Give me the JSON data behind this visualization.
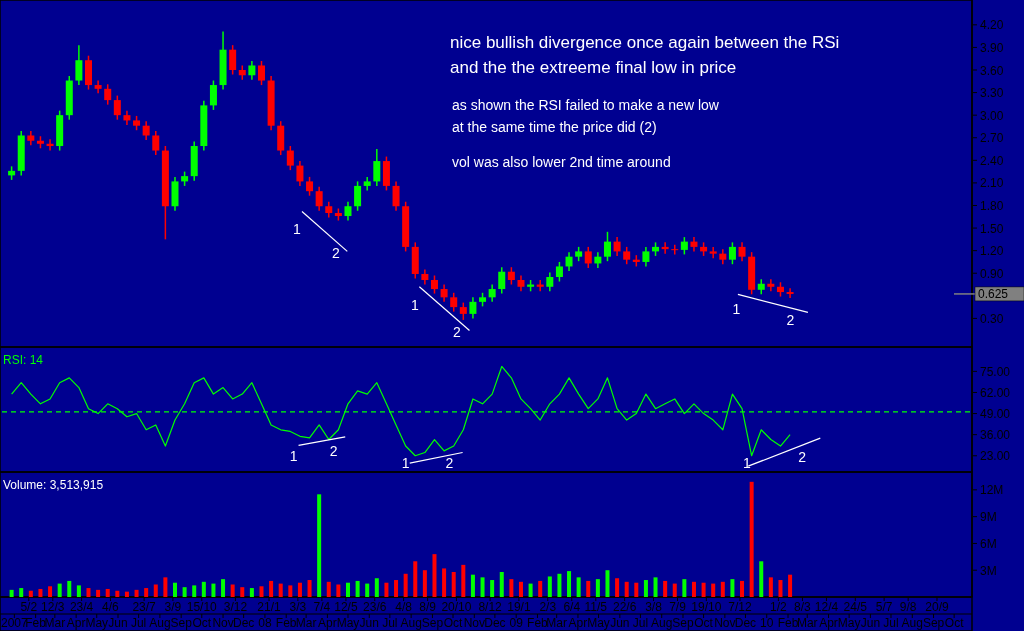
{
  "chart_data": [
    {
      "type": "candlestick",
      "xlim": [
        "2006-12-28",
        "2010-11-10"
      ],
      "ylim": [
        -0.08,
        4.53
      ],
      "tick_labels": "y",
      "yticks": [
        {
          "value": 4.2,
          "label": "4.20"
        },
        {
          "value": 3.9,
          "label": "3.90"
        },
        {
          "value": 3.6,
          "label": "3.60"
        },
        {
          "value": 3.3,
          "label": "3.30"
        },
        {
          "value": 3.0,
          "label": "3.00"
        },
        {
          "value": 2.7,
          "label": "2.70"
        },
        {
          "value": 2.4,
          "label": "2.40"
        },
        {
          "value": 2.1,
          "label": "2.10"
        },
        {
          "value": 1.8,
          "label": "1.80"
        },
        {
          "value": 1.5,
          "label": "1.50"
        },
        {
          "value": 1.2,
          "label": "1.20"
        },
        {
          "value": 0.9,
          "label": "0.90"
        },
        {
          "value": 0.3,
          "label": "0.30"
        }
      ],
      "x": [
        "2007-01-11",
        "2007-01-25",
        "2007-02-08",
        "2007-02-22",
        "2007-03-08",
        "2007-03-22",
        "2007-04-05",
        "2007-04-19",
        "2007-05-03",
        "2007-05-17",
        "2007-05-31",
        "2007-06-14",
        "2007-06-28",
        "2007-07-12",
        "2007-07-26",
        "2007-08-09",
        "2007-08-23",
        "2007-09-06",
        "2007-09-20",
        "2007-10-04",
        "2007-10-18",
        "2007-11-01",
        "2007-11-15",
        "2007-11-29",
        "2007-12-13",
        "2007-12-27",
        "2008-01-10",
        "2008-01-24",
        "2008-02-07",
        "2008-02-21",
        "2008-03-06",
        "2008-03-20",
        "2008-04-03",
        "2008-04-17",
        "2008-05-01",
        "2008-05-15",
        "2008-05-29",
        "2008-06-12",
        "2008-06-26",
        "2008-07-10",
        "2008-07-24",
        "2008-08-07",
        "2008-08-21",
        "2008-09-04",
        "2008-09-18",
        "2008-10-02",
        "2008-10-16",
        "2008-10-30",
        "2008-11-13",
        "2008-11-27",
        "2008-12-11",
        "2008-12-25",
        "2009-01-08",
        "2009-01-22",
        "2009-02-05",
        "2009-02-19",
        "2009-03-05",
        "2009-03-19",
        "2009-04-02",
        "2009-04-16",
        "2009-04-30",
        "2009-05-14",
        "2009-05-28",
        "2009-06-11",
        "2009-06-25",
        "2009-07-09",
        "2009-07-23",
        "2009-08-06",
        "2009-08-20",
        "2009-09-03",
        "2009-09-17",
        "2009-10-01",
        "2009-10-15",
        "2009-10-29",
        "2009-11-12",
        "2009-11-26",
        "2009-12-10",
        "2009-12-24",
        "2010-01-07",
        "2010-01-21",
        "2010-02-04",
        "2010-02-18"
      ],
      "ohlc": [
        [
          2.2,
          2.32,
          2.14,
          2.26
        ],
        [
          2.26,
          2.79,
          2.2,
          2.73
        ],
        [
          2.73,
          2.79,
          2.6,
          2.66
        ],
        [
          2.66,
          2.72,
          2.56,
          2.62
        ],
        [
          2.62,
          2.68,
          2.53,
          2.59
        ],
        [
          2.59,
          3.06,
          2.53,
          3.0
        ],
        [
          3.0,
          3.52,
          2.94,
          3.46
        ],
        [
          3.46,
          3.93,
          3.4,
          3.73
        ],
        [
          3.73,
          3.79,
          3.34,
          3.4
        ],
        [
          3.4,
          3.46,
          3.29,
          3.35
        ],
        [
          3.35,
          3.41,
          3.14,
          3.2
        ],
        [
          3.2,
          3.26,
          2.94,
          3.0
        ],
        [
          3.0,
          3.06,
          2.87,
          2.93
        ],
        [
          2.93,
          2.99,
          2.8,
          2.86
        ],
        [
          2.86,
          2.92,
          2.67,
          2.73
        ],
        [
          2.73,
          2.79,
          2.47,
          2.53
        ],
        [
          2.53,
          2.59,
          1.35,
          1.79
        ],
        [
          1.79,
          2.18,
          1.73,
          2.12
        ],
        [
          2.12,
          2.25,
          2.06,
          2.19
        ],
        [
          2.19,
          2.65,
          2.13,
          2.59
        ],
        [
          2.59,
          3.19,
          2.53,
          3.13
        ],
        [
          3.13,
          3.46,
          3.07,
          3.4
        ],
        [
          3.4,
          4.11,
          3.34,
          3.87
        ],
        [
          3.87,
          3.93,
          3.54,
          3.6
        ],
        [
          3.6,
          3.66,
          3.47,
          3.53
        ],
        [
          3.53,
          3.72,
          3.47,
          3.66
        ],
        [
          3.66,
          3.72,
          3.4,
          3.46
        ],
        [
          3.46,
          3.52,
          2.8,
          2.86
        ],
        [
          2.86,
          2.92,
          2.47,
          2.53
        ],
        [
          2.53,
          2.59,
          2.27,
          2.33
        ],
        [
          2.33,
          2.39,
          2.06,
          2.12
        ],
        [
          2.12,
          2.18,
          1.93,
          1.99
        ],
        [
          1.99,
          2.05,
          1.73,
          1.79
        ],
        [
          1.79,
          1.85,
          1.64,
          1.7
        ],
        [
          1.7,
          1.76,
          1.6,
          1.66
        ],
        [
          1.66,
          1.85,
          1.6,
          1.79
        ],
        [
          1.79,
          2.12,
          1.73,
          2.06
        ],
        [
          2.06,
          2.18,
          2.0,
          2.12
        ],
        [
          2.12,
          2.55,
          2.06,
          2.39
        ],
        [
          2.39,
          2.45,
          2.0,
          2.06
        ],
        [
          2.06,
          2.12,
          1.73,
          1.79
        ],
        [
          1.79,
          1.85,
          1.19,
          1.25
        ],
        [
          1.25,
          1.31,
          0.83,
          0.89
        ],
        [
          0.89,
          0.95,
          0.75,
          0.81
        ],
        [
          0.81,
          0.87,
          0.63,
          0.69
        ],
        [
          0.69,
          0.75,
          0.52,
          0.58
        ],
        [
          0.58,
          0.64,
          0.39,
          0.45
        ],
        [
          0.45,
          0.51,
          0.28,
          0.36
        ],
        [
          0.36,
          0.58,
          0.3,
          0.52
        ],
        [
          0.52,
          0.64,
          0.46,
          0.58
        ],
        [
          0.58,
          0.75,
          0.52,
          0.69
        ],
        [
          0.69,
          0.98,
          0.63,
          0.92
        ],
        [
          0.92,
          0.98,
          0.75,
          0.81
        ],
        [
          0.81,
          0.87,
          0.66,
          0.72
        ],
        [
          0.72,
          0.81,
          0.66,
          0.75
        ],
        [
          0.75,
          0.81,
          0.66,
          0.72
        ],
        [
          0.72,
          0.91,
          0.66,
          0.85
        ],
        [
          0.85,
          1.05,
          0.79,
          0.99
        ],
        [
          0.99,
          1.18,
          0.93,
          1.12
        ],
        [
          1.12,
          1.25,
          1.06,
          1.19
        ],
        [
          1.19,
          1.25,
          0.97,
          1.03
        ],
        [
          1.03,
          1.18,
          0.97,
          1.12
        ],
        [
          1.12,
          1.45,
          1.06,
          1.32
        ],
        [
          1.32,
          1.38,
          1.13,
          1.19
        ],
        [
          1.19,
          1.25,
          1.02,
          1.08
        ],
        [
          1.08,
          1.14,
          0.99,
          1.05
        ],
        [
          1.05,
          1.25,
          0.99,
          1.19
        ],
        [
          1.19,
          1.31,
          1.13,
          1.25
        ],
        [
          1.25,
          1.31,
          1.16,
          1.22
        ],
        [
          1.22,
          1.28,
          1.15,
          1.21
        ],
        [
          1.21,
          1.38,
          1.15,
          1.32
        ],
        [
          1.32,
          1.38,
          1.19,
          1.25
        ],
        [
          1.25,
          1.31,
          1.13,
          1.19
        ],
        [
          1.19,
          1.25,
          1.1,
          1.16
        ],
        [
          1.16,
          1.22,
          1.02,
          1.08
        ],
        [
          1.08,
          1.31,
          1.02,
          1.25
        ],
        [
          1.25,
          1.31,
          1.06,
          1.12
        ],
        [
          1.12,
          1.18,
          0.62,
          0.68
        ],
        [
          0.68,
          0.82,
          0.62,
          0.76
        ],
        [
          0.76,
          0.82,
          0.66,
          0.72
        ],
        [
          0.72,
          0.78,
          0.59,
          0.65
        ],
        [
          0.65,
          0.7,
          0.57,
          0.625
        ]
      ],
      "colors": [
        "#00ff00",
        "#00ff00",
        "#ff0000",
        "#ff0000",
        "#ff0000",
        "#00ff00",
        "#00ff00",
        "#00ff00",
        "#ff0000",
        "#ff0000",
        "#ff0000",
        "#ff0000",
        "#ff0000",
        "#ff0000",
        "#ff0000",
        "#ff0000",
        "#ff0000",
        "#00ff00",
        "#00ff00",
        "#00ff00",
        "#00ff00",
        "#00ff00",
        "#00ff00",
        "#ff0000",
        "#ff0000",
        "#00ff00",
        "#ff0000",
        "#ff0000",
        "#ff0000",
        "#ff0000",
        "#ff0000",
        "#ff0000",
        "#ff0000",
        "#ff0000",
        "#ff0000",
        "#00ff00",
        "#00ff00",
        "#00ff00",
        "#00ff00",
        "#ff0000",
        "#ff0000",
        "#ff0000",
        "#ff0000",
        "#ff0000",
        "#ff0000",
        "#ff0000",
        "#ff0000",
        "#ff0000",
        "#00ff00",
        "#00ff00",
        "#00ff00",
        "#00ff00",
        "#ff0000",
        "#ff0000",
        "#00ff00",
        "#ff0000",
        "#00ff00",
        "#00ff00",
        "#00ff00",
        "#00ff00",
        "#ff0000",
        "#00ff00",
        "#00ff00",
        "#ff0000",
        "#ff0000",
        "#ff0000",
        "#00ff00",
        "#00ff00",
        "#ff0000",
        "#ff0000",
        "#00ff00",
        "#ff0000",
        "#ff0000",
        "#ff0000",
        "#ff0000",
        "#00ff00",
        "#ff0000",
        "#ff0000",
        "#00ff00",
        "#ff0000",
        "#ff0000",
        "#ff0000"
      ],
      "series": [
        {
          "type": "line",
          "color": "#ffffff",
          "x": [
            "2008-03-09",
            "2008-05-14"
          ],
          "values": [
            1.72,
            1.19
          ]
        },
        {
          "type": "line",
          "color": "#ffffff",
          "x": [
            "2008-08-27",
            "2008-11-08"
          ],
          "values": [
            0.72,
            0.14
          ]
        },
        {
          "type": "line",
          "color": "#ffffff",
          "x": [
            "2009-12-04",
            "2010-03-16"
          ],
          "values": [
            0.62,
            0.38
          ]
        }
      ],
      "ref_lines": [
        {
          "axis": "y",
          "value": 0.625,
          "label": "0.625",
          "color": "#808080"
        }
      ],
      "annotations": [
        "nice bullish divergence once again between the RSi",
        "and the the extreeme final low in price",
        "as shown the RSI failed to make a new low",
        "at the same time the price did  (2)",
        "vol was also lower 2nd time around",
        "1",
        "2",
        "1",
        "2",
        "1",
        "2"
      ]
    },
    {
      "type": "line",
      "title": "RSI: 14",
      "xlim": [
        "2006-12-28",
        "2010-11-10"
      ],
      "ylim": [
        13,
        90
      ],
      "tick_labels": "y",
      "yticks": [
        {
          "value": 23,
          "label": "23.00"
        },
        {
          "value": 36,
          "label": "36.00"
        },
        {
          "value": 49,
          "label": "49.00"
        },
        {
          "value": 62,
          "label": "62.00"
        },
        {
          "value": 75,
          "label": "75.00"
        }
      ],
      "x": [
        "2007-01-11",
        "2007-01-25",
        "2007-02-08",
        "2007-02-22",
        "2007-03-08",
        "2007-03-22",
        "2007-04-05",
        "2007-04-19",
        "2007-05-03",
        "2007-05-17",
        "2007-05-31",
        "2007-06-14",
        "2007-06-28",
        "2007-07-12",
        "2007-07-26",
        "2007-08-09",
        "2007-08-23",
        "2007-09-06",
        "2007-09-20",
        "2007-10-04",
        "2007-10-18",
        "2007-11-01",
        "2007-11-15",
        "2007-11-29",
        "2007-12-13",
        "2007-12-27",
        "2008-01-10",
        "2008-01-24",
        "2008-02-07",
        "2008-02-21",
        "2008-03-06",
        "2008-03-20",
        "2008-04-03",
        "2008-04-17",
        "2008-05-01",
        "2008-05-15",
        "2008-05-29",
        "2008-06-12",
        "2008-06-26",
        "2008-07-10",
        "2008-07-24",
        "2008-08-07",
        "2008-08-21",
        "2008-09-04",
        "2008-09-18",
        "2008-10-02",
        "2008-10-16",
        "2008-10-30",
        "2008-11-13",
        "2008-11-27",
        "2008-12-11",
        "2008-12-25",
        "2009-01-08",
        "2009-01-22",
        "2009-02-05",
        "2009-02-19",
        "2009-03-05",
        "2009-03-19",
        "2009-04-02",
        "2009-04-16",
        "2009-04-30",
        "2009-05-14",
        "2009-05-28",
        "2009-06-11",
        "2009-06-25",
        "2009-07-09",
        "2009-07-23",
        "2009-08-06",
        "2009-08-20",
        "2009-09-03",
        "2009-09-17",
        "2009-10-01",
        "2009-10-15",
        "2009-10-29",
        "2009-11-12",
        "2009-11-26",
        "2009-12-10",
        "2009-12-24",
        "2010-01-07",
        "2010-01-21",
        "2010-02-04",
        "2010-02-18"
      ],
      "series": [
        {
          "color": "#00ff00",
          "values": [
            61,
            68,
            61,
            55,
            58,
            68,
            71,
            65,
            52,
            49,
            55,
            52,
            47,
            49,
            39,
            42,
            29,
            45,
            55,
            68,
            71,
            61,
            65,
            58,
            61,
            68,
            55,
            42,
            39,
            38,
            35,
            34,
            42,
            33,
            39,
            55,
            63,
            61,
            68,
            55,
            42,
            29,
            23,
            25,
            33,
            26,
            29,
            39,
            58,
            55,
            61,
            78,
            71,
            58,
            52,
            45,
            55,
            61,
            71,
            61,
            52,
            58,
            71,
            52,
            45,
            49,
            61,
            52,
            55,
            58,
            49,
            55,
            49,
            45,
            39,
            61,
            52,
            23,
            39,
            33,
            29,
            36
          ]
        },
        {
          "type": "line",
          "color": "#ffffff",
          "x": [
            "2008-03-04",
            "2008-05-11"
          ],
          "values": [
            29.4,
            34.6
          ]
        },
        {
          "type": "line",
          "color": "#ffffff",
          "x": [
            "2008-08-13",
            "2008-10-29"
          ],
          "values": [
            18.5,
            25
          ]
        },
        {
          "type": "line",
          "color": "#ffffff",
          "x": [
            "2009-12-19",
            "2010-04-03"
          ],
          "values": [
            16.6,
            33.9
          ]
        }
      ],
      "ref_lines": [
        {
          "axis": "y",
          "value": 50,
          "color": "#00ff00",
          "line_style": "dashed"
        }
      ],
      "annotations": [
        "1",
        "2",
        "1",
        "2",
        "1",
        "2"
      ]
    },
    {
      "type": "bar",
      "title": "Volume: 3,513,915",
      "xlim": [
        "2006-12-28",
        "2010-11-10"
      ],
      "ylim": [
        0,
        14
      ],
      "yticks": [
        {
          "value": 3,
          "label": "3M"
        },
        {
          "value": 6,
          "label": "6M"
        },
        {
          "value": 9,
          "label": "9M"
        },
        {
          "value": 12,
          "label": "12M"
        }
      ],
      "xticks": [
        {
          "value": "2007-01-15",
          "label": "2007"
        },
        {
          "value": "2007-02-15",
          "label": "Feb"
        },
        {
          "value": "2007-03-15",
          "label": "Mar"
        },
        {
          "value": "2007-04-15",
          "label": "Apr"
        },
        {
          "value": "2007-05-15",
          "label": "May"
        },
        {
          "value": "2007-06-15",
          "label": "Jun"
        },
        {
          "value": "2007-07-15",
          "label": "Jul"
        },
        {
          "value": "2007-08-15",
          "label": "Aug"
        },
        {
          "value": "2007-09-15",
          "label": "Sep"
        },
        {
          "value": "2007-10-15",
          "label": "Oct"
        },
        {
          "value": "2007-11-15",
          "label": "Nov"
        },
        {
          "value": "2007-12-15",
          "label": "Dec"
        },
        {
          "value": "2008-01-15",
          "label": "08"
        },
        {
          "value": "2008-02-15",
          "label": "Feb"
        },
        {
          "value": "2008-03-15",
          "label": "Mar"
        },
        {
          "value": "2008-04-15",
          "label": "Apr"
        },
        {
          "value": "2008-05-15",
          "label": "May"
        },
        {
          "value": "2008-06-15",
          "label": "Jun"
        },
        {
          "value": "2008-07-15",
          "label": "Jul"
        },
        {
          "value": "2008-08-15",
          "label": "Aug"
        },
        {
          "value": "2008-09-15",
          "label": "Sep"
        },
        {
          "value": "2008-10-15",
          "label": "Oct"
        },
        {
          "value": "2008-11-15",
          "label": "Nov"
        },
        {
          "value": "2008-12-15",
          "label": "Dec"
        },
        {
          "value": "2009-01-15",
          "label": "09"
        },
        {
          "value": "2009-02-15",
          "label": "Feb"
        },
        {
          "value": "2009-03-15",
          "label": "Mar"
        },
        {
          "value": "2009-04-15",
          "label": "Apr"
        },
        {
          "value": "2009-05-15",
          "label": "May"
        },
        {
          "value": "2009-06-15",
          "label": "Jun"
        },
        {
          "value": "2009-07-15",
          "label": "Jul"
        },
        {
          "value": "2009-08-15",
          "label": "Aug"
        },
        {
          "value": "2009-09-15",
          "label": "Sep"
        },
        {
          "value": "2009-10-15",
          "label": "Oct"
        },
        {
          "value": "2009-11-15",
          "label": "Nov"
        },
        {
          "value": "2009-12-15",
          "label": "Dec"
        },
        {
          "value": "2010-01-15",
          "label": "10"
        },
        {
          "value": "2010-02-15",
          "label": "Feb"
        },
        {
          "value": "2010-03-15",
          "label": "Mar"
        },
        {
          "value": "2010-04-15",
          "label": "Apr"
        },
        {
          "value": "2010-05-15",
          "label": "May"
        },
        {
          "value": "2010-06-15",
          "label": "Jun"
        },
        {
          "value": "2010-07-15",
          "label": "Jul"
        },
        {
          "value": "2010-08-15",
          "label": "Aug"
        },
        {
          "value": "2010-09-15",
          "label": "Sep"
        },
        {
          "value": "2010-10-15",
          "label": "Oct"
        }
      ],
      "x2lim": [
        "2006-12-28",
        "2010-11-10"
      ],
      "x2ticks": [
        {
          "value": "2007-02-05",
          "label": "5/2"
        },
        {
          "value": "2007-03-12",
          "label": "12/3"
        },
        {
          "value": "2007-04-23",
          "label": "23/4"
        },
        {
          "value": "2007-06-04",
          "label": "4/6"
        },
        {
          "value": "2007-07-23",
          "label": "23/7"
        },
        {
          "value": "2007-09-03",
          "label": "3/9"
        },
        {
          "value": "2007-10-15",
          "label": "15/10"
        },
        {
          "value": "2007-12-03",
          "label": "3/12"
        },
        {
          "value": "2008-01-21",
          "label": "21/1"
        },
        {
          "value": "2008-03-03",
          "label": "3/3"
        },
        {
          "value": "2008-04-07",
          "label": "7/4"
        },
        {
          "value": "2008-05-12",
          "label": "12/5"
        },
        {
          "value": "2008-06-23",
          "label": "23/6"
        },
        {
          "value": "2008-08-04",
          "label": "4/8"
        },
        {
          "value": "2008-09-08",
          "label": "8/9"
        },
        {
          "value": "2008-10-20",
          "label": "20/10"
        },
        {
          "value": "2008-12-08",
          "label": "8/12"
        },
        {
          "value": "2009-01-19",
          "label": "19/1"
        },
        {
          "value": "2009-03-02",
          "label": "2/3"
        },
        {
          "value": "2009-04-06",
          "label": "6/4"
        },
        {
          "value": "2009-05-11",
          "label": "11/5"
        },
        {
          "value": "2009-06-22",
          "label": "22/6"
        },
        {
          "value": "2009-08-03",
          "label": "3/8"
        },
        {
          "value": "2009-09-07",
          "label": "7/9"
        },
        {
          "value": "2009-10-19",
          "label": "19/10"
        },
        {
          "value": "2009-12-07",
          "label": "7/12"
        },
        {
          "value": "2010-02-01",
          "label": "1/2"
        },
        {
          "value": "2010-03-08",
          "label": "8/3"
        },
        {
          "value": "2010-04-12",
          "label": "12/4"
        },
        {
          "value": "2010-05-24",
          "label": "24/5"
        },
        {
          "value": "2010-07-05",
          "label": "5/7"
        },
        {
          "value": "2010-08-09",
          "label": "9/8"
        },
        {
          "value": "2010-09-20",
          "label": "20/9"
        }
      ],
      "x": [
        "2007-01-11",
        "2007-01-25",
        "2007-02-08",
        "2007-02-22",
        "2007-03-08",
        "2007-03-22",
        "2007-04-05",
        "2007-04-19",
        "2007-05-03",
        "2007-05-17",
        "2007-05-31",
        "2007-06-14",
        "2007-06-28",
        "2007-07-12",
        "2007-07-26",
        "2007-08-09",
        "2007-08-23",
        "2007-09-06",
        "2007-09-20",
        "2007-10-04",
        "2007-10-18",
        "2007-11-01",
        "2007-11-15",
        "2007-11-29",
        "2007-12-13",
        "2007-12-27",
        "2008-01-10",
        "2008-01-24",
        "2008-02-07",
        "2008-02-21",
        "2008-03-06",
        "2008-03-20",
        "2008-04-03",
        "2008-04-17",
        "2008-05-01",
        "2008-05-15",
        "2008-05-29",
        "2008-06-12",
        "2008-06-26",
        "2008-07-10",
        "2008-07-24",
        "2008-08-07",
        "2008-08-21",
        "2008-09-04",
        "2008-09-18",
        "2008-10-02",
        "2008-10-16",
        "2008-10-30",
        "2008-11-13",
        "2008-11-27",
        "2008-12-11",
        "2008-12-25",
        "2009-01-08",
        "2009-01-22",
        "2009-02-05",
        "2009-02-19",
        "2009-03-05",
        "2009-03-19",
        "2009-04-02",
        "2009-04-16",
        "2009-04-30",
        "2009-05-14",
        "2009-05-28",
        "2009-06-11",
        "2009-06-25",
        "2009-07-09",
        "2009-07-23",
        "2009-08-06",
        "2009-08-20",
        "2009-09-03",
        "2009-09-17",
        "2009-10-01",
        "2009-10-15",
        "2009-10-29",
        "2009-11-12",
        "2009-11-26",
        "2009-12-10",
        "2009-12-24",
        "2010-01-07",
        "2010-01-21",
        "2010-02-04",
        "2010-02-18"
      ],
      "values": [
        0.8,
        1.0,
        0.7,
        0.9,
        1.2,
        1.5,
        1.8,
        1.3,
        1.0,
        0.8,
        0.9,
        0.7,
        0.6,
        0.8,
        1.0,
        1.4,
        2.2,
        1.6,
        1.1,
        1.3,
        1.7,
        1.5,
        2.0,
        1.4,
        1.1,
        1.0,
        1.2,
        1.8,
        1.5,
        1.3,
        1.6,
        1.9,
        11.5,
        1.7,
        1.4,
        1.6,
        1.8,
        1.5,
        2.1,
        1.6,
        1.9,
        2.6,
        4.0,
        3.0,
        4.8,
        3.2,
        2.8,
        3.6,
        2.5,
        2.2,
        1.9,
        2.8,
        2.0,
        1.7,
        1.5,
        1.8,
        2.3,
        2.6,
        2.9,
        2.2,
        1.8,
        2.0,
        3.0,
        2.1,
        1.7,
        1.6,
        1.9,
        2.2,
        1.8,
        1.5,
        2.0,
        1.7,
        1.6,
        1.5,
        1.7,
        2.0,
        1.8,
        12.9,
        4.0,
        2.2,
        1.9,
        2.5
      ],
      "colors": [
        "#00ff00",
        "#00ff00",
        "#ff0000",
        "#ff0000",
        "#ff0000",
        "#00ff00",
        "#00ff00",
        "#00ff00",
        "#ff0000",
        "#ff0000",
        "#ff0000",
        "#ff0000",
        "#ff0000",
        "#ff0000",
        "#ff0000",
        "#ff0000",
        "#ff0000",
        "#00ff00",
        "#00ff00",
        "#00ff00",
        "#00ff00",
        "#00ff00",
        "#00ff00",
        "#ff0000",
        "#ff0000",
        "#00ff00",
        "#ff0000",
        "#ff0000",
        "#ff0000",
        "#ff0000",
        "#ff0000",
        "#ff0000",
        "#00ff00",
        "#ff0000",
        "#ff0000",
        "#00ff00",
        "#00ff00",
        "#00ff00",
        "#00ff00",
        "#ff0000",
        "#ff0000",
        "#ff0000",
        "#ff0000",
        "#ff0000",
        "#ff0000",
        "#ff0000",
        "#ff0000",
        "#ff0000",
        "#00ff00",
        "#00ff00",
        "#00ff00",
        "#00ff00",
        "#ff0000",
        "#ff0000",
        "#00ff00",
        "#ff0000",
        "#00ff00",
        "#00ff00",
        "#00ff00",
        "#00ff00",
        "#ff0000",
        "#00ff00",
        "#00ff00",
        "#ff0000",
        "#ff0000",
        "#ff0000",
        "#00ff00",
        "#00ff00",
        "#ff0000",
        "#ff0000",
        "#00ff00",
        "#ff0000",
        "#ff0000",
        "#ff0000",
        "#ff0000",
        "#00ff00",
        "#ff0000",
        "#ff0000",
        "#00ff00",
        "#ff0000",
        "#ff0000",
        "#ff0000"
      ]
    }
  ]
}
